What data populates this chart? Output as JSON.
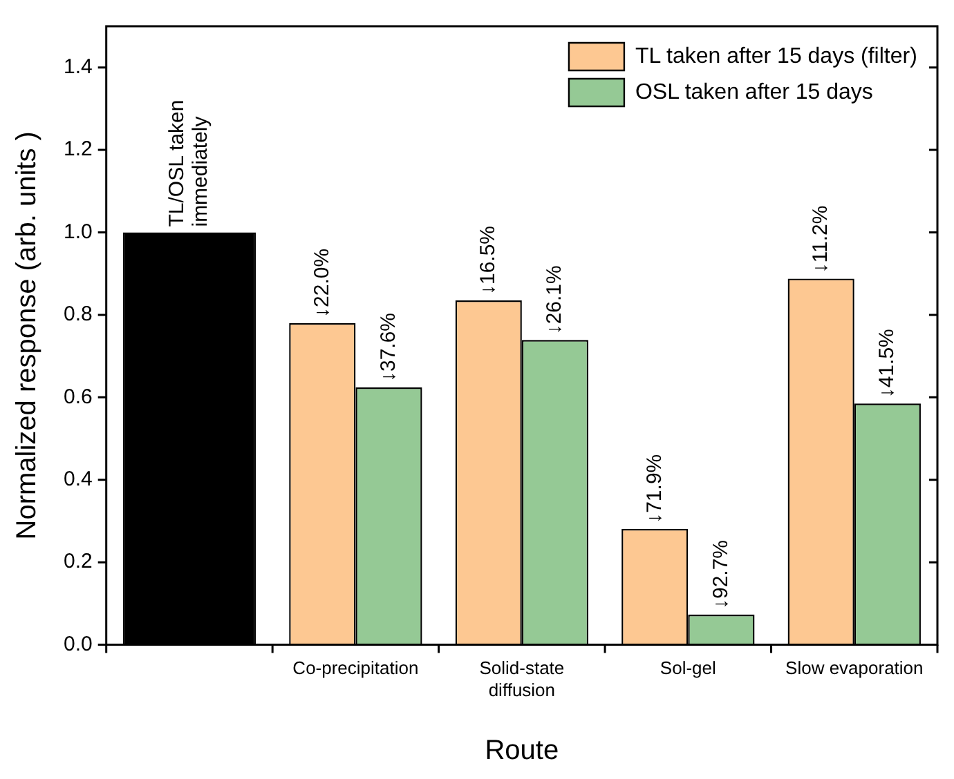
{
  "chart_data": {
    "type": "bar",
    "xlabel": "Route",
    "ylabel": "Normalized response (arb. units )",
    "categories": [
      null,
      "Co-precipitation",
      "Solid-state diffusion",
      "Sol-gel",
      "Slow evaporation"
    ],
    "series": [
      {
        "color": "#000000",
        "values": [
          1.0,
          null,
          null,
          null,
          null
        ],
        "value_labels": [
          "TL/OSL taken immediately",
          null,
          null,
          null,
          null
        ]
      },
      {
        "name": "TL taken after 15 days (filter)",
        "color": "#fdc892",
        "values": [
          null,
          0.78,
          0.835,
          0.281,
          0.888
        ]
      },
      {
        "name": "OSL taken after 15 days",
        "color": "#95c995",
        "values": [
          null,
          0.624,
          0.739,
          0.073,
          0.585
        ]
      }
    ],
    "annotations": [
      {
        "text": "↓22.0%",
        "x": "Co-precipitation",
        "y": 0.78
      },
      {
        "text": "↓37.6%",
        "x": "Co-precipitation",
        "y": 0.624
      },
      {
        "text": "↓16.5%",
        "x": "Solid-state diffusion",
        "y": 0.835
      },
      {
        "text": "↓26.1%",
        "x": "Solid-state diffusion",
        "y": 0.739
      },
      {
        "text": "↓71.9%",
        "x": "Sol-gel",
        "y": 0.281
      },
      {
        "text": "↓92.7%",
        "x": "Sol-gel",
        "y": 0.073
      },
      {
        "text": "↓11.2%",
        "x": "Slow evaporation",
        "y": 0.888
      },
      {
        "text": "↓41.5%",
        "x": "Slow evaporation",
        "y": 0.585
      }
    ],
    "ylim": [
      0,
      1.5
    ],
    "yticks": [
      {
        "value": 0,
        "label": "0.0"
      },
      {
        "value": 0.2,
        "label": "0.2"
      },
      {
        "value": 0.4,
        "label": "0.4"
      },
      {
        "value": 0.6,
        "label": "0.6"
      },
      {
        "value": 0.8,
        "label": "0.8"
      },
      {
        "value": 1.0,
        "label": "1.0"
      },
      {
        "value": 1.2,
        "label": "1.2"
      },
      {
        "value": 1.4,
        "label": "1.4"
      }
    ],
    "grid": false,
    "legend": "top right"
  }
}
